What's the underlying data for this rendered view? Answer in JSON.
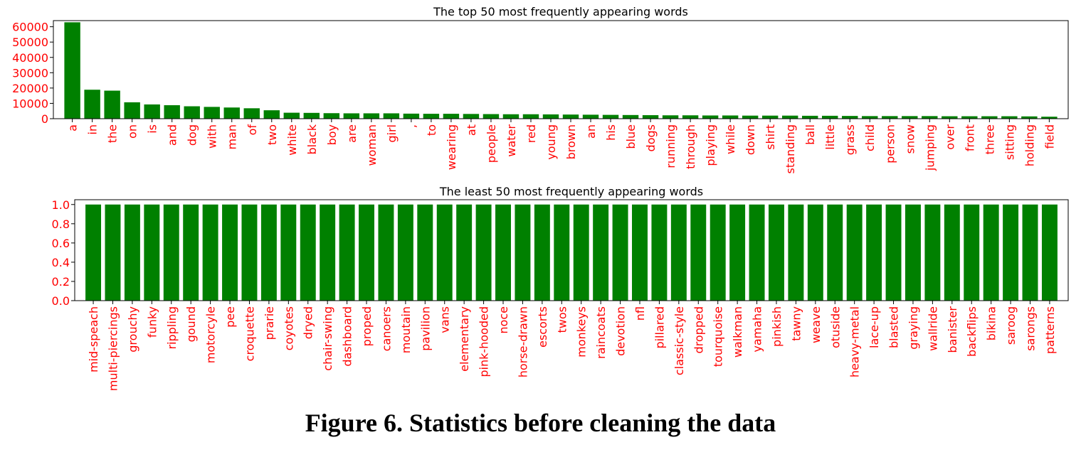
{
  "caption": "Figure 6. Statistics before cleaning the data",
  "colors": {
    "bar": "#008000",
    "tick_label": "#ff0000",
    "title": "#000000",
    "axes": "#000000"
  },
  "chart_data": [
    {
      "type": "bar",
      "title": "The top 50 most frequently appearing words",
      "xlabel": "",
      "ylabel": "",
      "ylim": [
        0,
        64000
      ],
      "yticks": [
        0,
        10000,
        20000,
        30000,
        40000,
        50000,
        60000
      ],
      "grid": false,
      "categories": [
        "a",
        "in",
        "the",
        "on",
        "is",
        "and",
        "dog",
        "with",
        "man",
        "of",
        "two",
        "white",
        "black",
        "boy",
        "are",
        "woman",
        "girl",
        ",",
        "to",
        "wearing",
        "at",
        "people",
        "water",
        "red",
        "young",
        "brown",
        "an",
        "his",
        "blue",
        "dogs",
        "running",
        "through",
        "playing",
        "while",
        "down",
        "shirt",
        "standing",
        "ball",
        "little",
        "grass",
        "child",
        "person",
        "snow",
        "jumping",
        "over",
        "front",
        "three",
        "sitting",
        "holding",
        "field"
      ],
      "values": [
        62900,
        18900,
        18300,
        10700,
        9300,
        8800,
        8100,
        7700,
        7300,
        6800,
        5500,
        3900,
        3800,
        3600,
        3500,
        3500,
        3500,
        3300,
        3200,
        3200,
        3100,
        3000,
        2900,
        2900,
        2800,
        2700,
        2600,
        2500,
        2400,
        2300,
        2200,
        2200,
        2100,
        2100,
        2000,
        2000,
        2000,
        1900,
        1900,
        1800,
        1700,
        1700,
        1700,
        1700,
        1600,
        1600,
        1600,
        1600,
        1500,
        1300
      ]
    },
    {
      "type": "bar",
      "title": "The least 50 most frequently appearing words",
      "xlabel": "",
      "ylabel": "",
      "ylim": [
        0,
        1.05
      ],
      "yticks": [
        0.0,
        0.2,
        0.4,
        0.6,
        0.8,
        1.0
      ],
      "grid": false,
      "categories": [
        "mid-speach",
        "multi-piercings",
        "grouchy",
        "funky",
        "rippling",
        "gound",
        "motorcyle",
        "pee",
        "croquette",
        "prarie",
        "coyotes",
        "dryed",
        "chair-swing",
        "dashboard",
        "proped",
        "canoers",
        "moutain",
        "pavilion",
        "vans",
        "elementary",
        "pink-hooded",
        "noce",
        "horse-drawn",
        "escorts",
        "twos",
        "monkeys",
        "raincoats",
        "devotion",
        "nfl",
        "pillared",
        "classic-style",
        "dropped",
        "tourquoise",
        "walkman",
        "yamaha",
        "pinkish",
        "tawny",
        "weave",
        "otuside",
        "heavy-metal",
        "lace-up",
        "blasted",
        "graying",
        "wallride",
        "banister",
        "backflips",
        "bikina",
        "saroog",
        "sarongs",
        "patterns"
      ],
      "values": [
        1,
        1,
        1,
        1,
        1,
        1,
        1,
        1,
        1,
        1,
        1,
        1,
        1,
        1,
        1,
        1,
        1,
        1,
        1,
        1,
        1,
        1,
        1,
        1,
        1,
        1,
        1,
        1,
        1,
        1,
        1,
        1,
        1,
        1,
        1,
        1,
        1,
        1,
        1,
        1,
        1,
        1,
        1,
        1,
        1,
        1,
        1,
        1,
        1,
        1
      ]
    }
  ]
}
